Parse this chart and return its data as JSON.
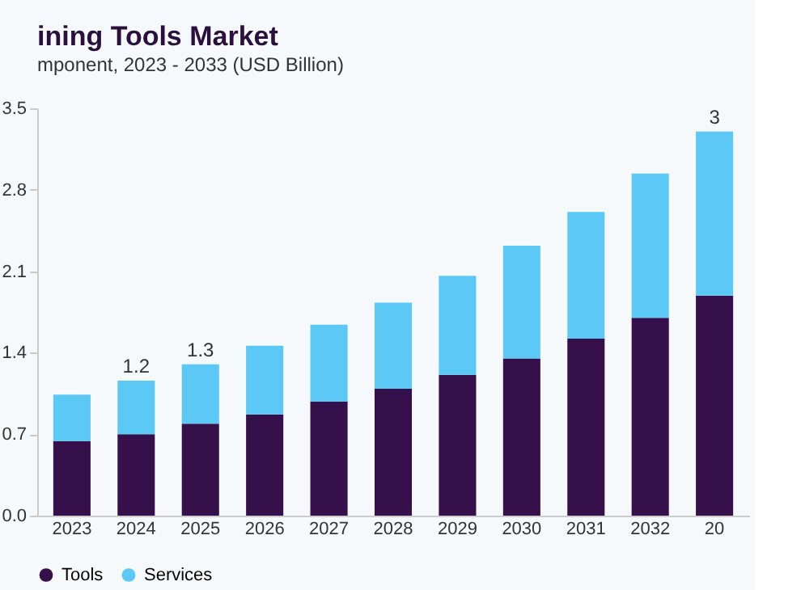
{
  "chart_data": {
    "type": "bar",
    "title": "ining Tools Market",
    "subtitle": "mponent, 2023 - 2033 (USD Billion)",
    "categories": [
      "2023",
      "2024",
      "2025",
      "2026",
      "2027",
      "2028",
      "2029",
      "2030",
      "2031",
      "2032",
      "20"
    ],
    "stacked": true,
    "series": [
      {
        "name": "Tools",
        "color": "#35104a",
        "values": [
          0.64,
          0.7,
          0.79,
          0.87,
          0.98,
          1.09,
          1.21,
          1.35,
          1.52,
          1.7,
          1.89
        ]
      },
      {
        "name": "Services",
        "color": "#5bc8f5",
        "values": [
          0.4,
          0.46,
          0.51,
          0.59,
          0.66,
          0.74,
          0.85,
          0.97,
          1.09,
          1.24,
          1.41
        ]
      }
    ],
    "totals": [
      null,
      "1.2",
      "1.3",
      null,
      null,
      null,
      null,
      null,
      null,
      null,
      "3"
    ],
    "ylim": [
      0,
      3.5
    ],
    "yticks": [
      {
        "value": 0,
        "label": "0.0"
      },
      0.7,
      1.4,
      2.1,
      2.8,
      3.5
    ],
    "grid": false,
    "legend": "bottom"
  }
}
